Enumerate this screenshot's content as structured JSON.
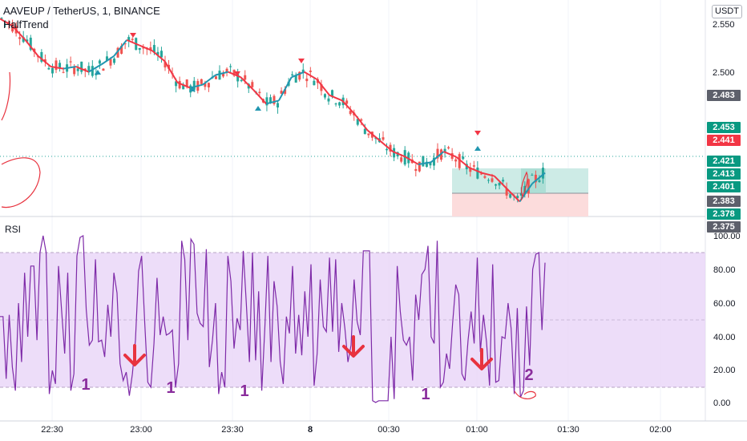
{
  "header": {
    "symbol_title": "AAVEUP / TetherUS, 1, BINANCE",
    "indicator": "HalfTrend",
    "currency": "USDT"
  },
  "rsi_panel": {
    "label": "RSI"
  },
  "price_axis": {
    "ticks": [
      "2.550",
      "2.500"
    ],
    "badges": [
      {
        "value": "2.483",
        "color": "#5d606b"
      },
      {
        "value": "2.453",
        "color": "#089981"
      },
      {
        "value": "2.441",
        "color": "#f23645"
      },
      {
        "value": "2.421",
        "color": "#089981"
      },
      {
        "value": "2.413",
        "color": "#089981"
      },
      {
        "value": "2.401",
        "color": "#089981"
      },
      {
        "value": "2.383",
        "color": "#5d606b"
      },
      {
        "value": "2.378",
        "color": "#089981"
      },
      {
        "value": "2.375",
        "color": "#5d606b"
      }
    ]
  },
  "rsi_axis": {
    "ticks": [
      "100.00",
      "80.00",
      "60.00",
      "40.00",
      "20.00",
      "0.00"
    ]
  },
  "time_axis": {
    "ticks": [
      {
        "label": "22:30",
        "bold": false
      },
      {
        "label": "23:00",
        "bold": false
      },
      {
        "label": "23:30",
        "bold": false
      },
      {
        "label": "8",
        "bold": true
      },
      {
        "label": "00:30",
        "bold": false
      },
      {
        "label": "01:00",
        "bold": false
      },
      {
        "label": "01:30",
        "bold": false
      },
      {
        "label": "02:00",
        "bold": false
      }
    ]
  },
  "annotations": {
    "rsi_numbers": [
      "1",
      "1",
      "1",
      "1",
      "2"
    ]
  },
  "colors": {
    "up": "#26a69a",
    "down": "#ef5350",
    "halftrend_down": "#f23645",
    "halftrend_up": "#2196b0",
    "rsi_line": "#7e2aa8",
    "rsi_band": "#e9d5f8",
    "position_profit": "#cdebe6",
    "position_loss": "#fcdcdc",
    "annotation_arrow": "#e8333f",
    "annotation_text": "#8a2d9c"
  },
  "chart_data": [
    {
      "type": "candlestick",
      "title": "AAVEUP / TetherUS, 1, BINANCE",
      "series": [
        {
          "name": "HalfTrend"
        }
      ],
      "ylim": [
        2.375,
        2.55
      ],
      "close_trend": [
        2.555,
        2.548,
        2.535,
        2.52,
        2.51,
        2.508,
        2.51,
        2.505,
        2.512,
        2.52,
        2.535,
        2.53,
        2.525,
        2.515,
        2.495,
        2.49,
        2.493,
        2.502,
        2.505,
        2.5,
        2.488,
        2.475,
        2.478,
        2.5,
        2.505,
        2.498,
        2.483,
        2.478,
        2.465,
        2.45,
        2.44,
        2.43,
        2.425,
        2.418,
        2.42,
        2.43,
        2.425,
        2.415,
        2.41,
        2.407,
        2.395,
        2.383,
        2.4,
        2.41
      ],
      "last_price": 2.413
    },
    {
      "type": "line",
      "series": [
        {
          "name": "RSI"
        }
      ],
      "ylim": [
        0,
        100
      ],
      "bands": [
        10,
        50,
        90
      ],
      "values": [
        52,
        52,
        15,
        53,
        22,
        8,
        60,
        25,
        78,
        40,
        82,
        82,
        38,
        90,
        100,
        90,
        6,
        20,
        12,
        82,
        56,
        30,
        78,
        8,
        18,
        88,
        99,
        100,
        56,
        35,
        38,
        86,
        37,
        38,
        28,
        59,
        40,
        78,
        66,
        24,
        14,
        19,
        5,
        18,
        38,
        79,
        88,
        48,
        13,
        10,
        36,
        75,
        41,
        52,
        41,
        42,
        44,
        10,
        24,
        97,
        86,
        38,
        98,
        95,
        54,
        48,
        46,
        92,
        22,
        38,
        60,
        6,
        19,
        10,
        88,
        73,
        33,
        51,
        44,
        91,
        60,
        25,
        90,
        26,
        67,
        8,
        45,
        88,
        25,
        73,
        58,
        25,
        12,
        52,
        42,
        82,
        30,
        53,
        29,
        67,
        40,
        83,
        11,
        30,
        74,
        46,
        43,
        87,
        43,
        86,
        31,
        60,
        45,
        25,
        35,
        74,
        49,
        41,
        91,
        91,
        91,
        2,
        1,
        2,
        2,
        2,
        2,
        40,
        3,
        82,
        55,
        38,
        35,
        40,
        14,
        65,
        50,
        77,
        80,
        94,
        40,
        36,
        97,
        10,
        13,
        30,
        21,
        48,
        71,
        65,
        18,
        14,
        38,
        55,
        36,
        87,
        31,
        53,
        37,
        11,
        83,
        13,
        14,
        40,
        39,
        60,
        45,
        6,
        57,
        4,
        8,
        58,
        23,
        80,
        89,
        90,
        44,
        84
      ]
    }
  ]
}
